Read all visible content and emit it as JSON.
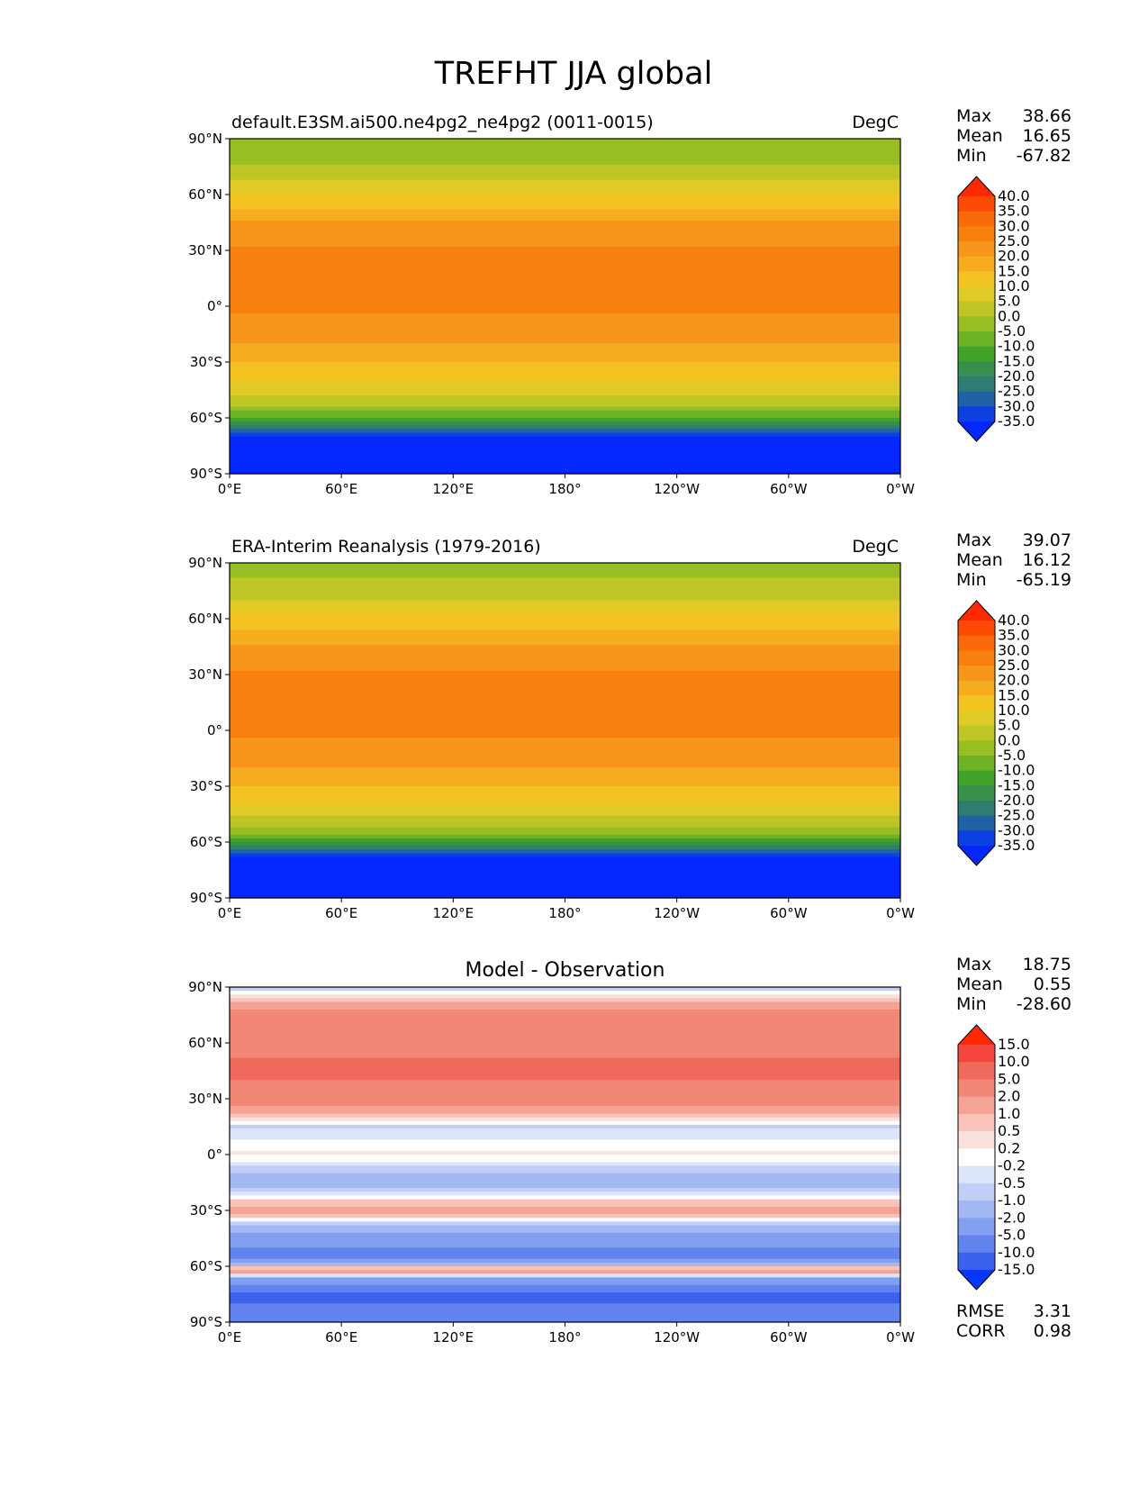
{
  "chart_data": {
    "type": "heatmap",
    "title": "TREFHT JJA global",
    "x_ticks": [
      "0°E",
      "60°E",
      "120°E",
      "180°",
      "120°W",
      "60°W",
      "0°W"
    ],
    "y_ticks": [
      "90°N",
      "60°N",
      "30°N",
      "0°",
      "30°S",
      "60°S",
      "90°S"
    ],
    "xlim": [
      0,
      360
    ],
    "ylim": [
      -90,
      90
    ],
    "panels": [
      {
        "id": "model",
        "left_title": "default.E3SM.ai500.ne4pg2_ne4pg2 (0011-0015)",
        "center_title": "",
        "units": "DegC",
        "stats": [
          {
            "label": "Max",
            "value": "38.66"
          },
          {
            "label": "Mean",
            "value": "16.65"
          },
          {
            "label": "Min",
            "value": "-67.82"
          }
        ],
        "colorbar_levels": [
          "40.0",
          "35.0",
          "30.0",
          "25.0",
          "20.0",
          "15.0",
          "10.0",
          "5.0",
          "0.0",
          "-5.0",
          "-10.0",
          "-15.0",
          "-20.0",
          "-25.0",
          "-30.0",
          "-35.0"
        ],
        "colorbar_colors": [
          "#ff2a05",
          "#ff4a05",
          "#fb6a0a",
          "#f8800e",
          "#f7961b",
          "#f5ad1f",
          "#f3c321",
          "#e0ca25",
          "#bec524",
          "#97bf22",
          "#6eb226",
          "#41a22a",
          "#368f4a",
          "#2f7d72",
          "#1f63a6",
          "#0d40e0",
          "#0527ff"
        ],
        "zonal_profile": [
          {
            "lat": 90,
            "value": -5
          },
          {
            "lat": 75,
            "value": 0
          },
          {
            "lat": 60,
            "value": 10
          },
          {
            "lat": 45,
            "value": 20
          },
          {
            "lat": 30,
            "value": 26
          },
          {
            "lat": 15,
            "value": 27
          },
          {
            "lat": 0,
            "value": 26
          },
          {
            "lat": -15,
            "value": 22
          },
          {
            "lat": -30,
            "value": 15
          },
          {
            "lat": -45,
            "value": 8
          },
          {
            "lat": -55,
            "value": -2
          },
          {
            "lat": -62,
            "value": -15
          },
          {
            "lat": -68,
            "value": -28
          },
          {
            "lat": -75,
            "value": -45
          },
          {
            "lat": -90,
            "value": -60
          }
        ]
      },
      {
        "id": "obs",
        "left_title": "ERA-Interim Reanalysis (1979-2016)",
        "center_title": "",
        "units": "DegC",
        "stats": [
          {
            "label": "Max",
            "value": "39.07"
          },
          {
            "label": "Mean",
            "value": "16.12"
          },
          {
            "label": "Min",
            "value": "-65.19"
          }
        ],
        "colorbar_levels": [
          "40.0",
          "35.0",
          "30.0",
          "25.0",
          "20.0",
          "15.0",
          "10.0",
          "5.0",
          "0.0",
          "-5.0",
          "-10.0",
          "-15.0",
          "-20.0",
          "-25.0",
          "-30.0",
          "-35.0"
        ],
        "colorbar_colors": [
          "#ff2a05",
          "#ff4a05",
          "#fb6a0a",
          "#f8800e",
          "#f7961b",
          "#f5ad1f",
          "#f3c321",
          "#e0ca25",
          "#bec524",
          "#97bf22",
          "#6eb226",
          "#41a22a",
          "#368f4a",
          "#2f7d72",
          "#1f63a6",
          "#0d40e0",
          "#0527ff"
        ],
        "zonal_profile": [
          {
            "lat": 90,
            "value": -3
          },
          {
            "lat": 75,
            "value": 2
          },
          {
            "lat": 60,
            "value": 12
          },
          {
            "lat": 45,
            "value": 20
          },
          {
            "lat": 30,
            "value": 26
          },
          {
            "lat": 15,
            "value": 27
          },
          {
            "lat": 0,
            "value": 26
          },
          {
            "lat": -15,
            "value": 22
          },
          {
            "lat": -30,
            "value": 15
          },
          {
            "lat": -45,
            "value": 7
          },
          {
            "lat": -55,
            "value": -4
          },
          {
            "lat": -62,
            "value": -18
          },
          {
            "lat": -68,
            "value": -35
          },
          {
            "lat": -75,
            "value": -50
          },
          {
            "lat": -90,
            "value": -60
          }
        ]
      },
      {
        "id": "diff",
        "left_title": "",
        "center_title": "Model - Observation",
        "units": "",
        "stats": [
          {
            "label": "Max",
            "value": "18.75"
          },
          {
            "label": "Mean",
            "value": "0.55"
          },
          {
            "label": "Min",
            "value": "-28.60"
          }
        ],
        "colorbar_levels": [
          "15.0",
          "10.0",
          "5.0",
          "2.0",
          "1.0",
          "0.5",
          "0.2",
          "-0.2",
          "-0.5",
          "-1.0",
          "-2.0",
          "-5.0",
          "-10.0",
          "-15.0"
        ],
        "colorbar_colors": [
          "#ff2a05",
          "#f4473d",
          "#f06a5b",
          "#f28778",
          "#f4a395",
          "#f8c3b8",
          "#fbe1dc",
          "#ffffff",
          "#dde5fb",
          "#c1cff8",
          "#a3b7f3",
          "#839ff0",
          "#6283ee",
          "#3c62ed",
          "#0537fa"
        ],
        "zonal_profile": [
          {
            "lat": 90,
            "value": -1.0
          },
          {
            "lat": 75,
            "value": 3.0
          },
          {
            "lat": 60,
            "value": 4.0
          },
          {
            "lat": 45,
            "value": 6.0
          },
          {
            "lat": 30,
            "value": 3.0
          },
          {
            "lat": 15,
            "value": -0.6
          },
          {
            "lat": 0,
            "value": 0.3
          },
          {
            "lat": -15,
            "value": -1.5
          },
          {
            "lat": -30,
            "value": 1.5
          },
          {
            "lat": -45,
            "value": -3.0
          },
          {
            "lat": -55,
            "value": -7.0
          },
          {
            "lat": -62,
            "value": 2.0
          },
          {
            "lat": -68,
            "value": -3.0
          },
          {
            "lat": -75,
            "value": -12.0
          },
          {
            "lat": -90,
            "value": -6.0
          }
        ]
      }
    ],
    "error_stats": [
      {
        "label": "RMSE",
        "value": "3.31"
      },
      {
        "label": "CORR",
        "value": "0.98"
      }
    ]
  }
}
